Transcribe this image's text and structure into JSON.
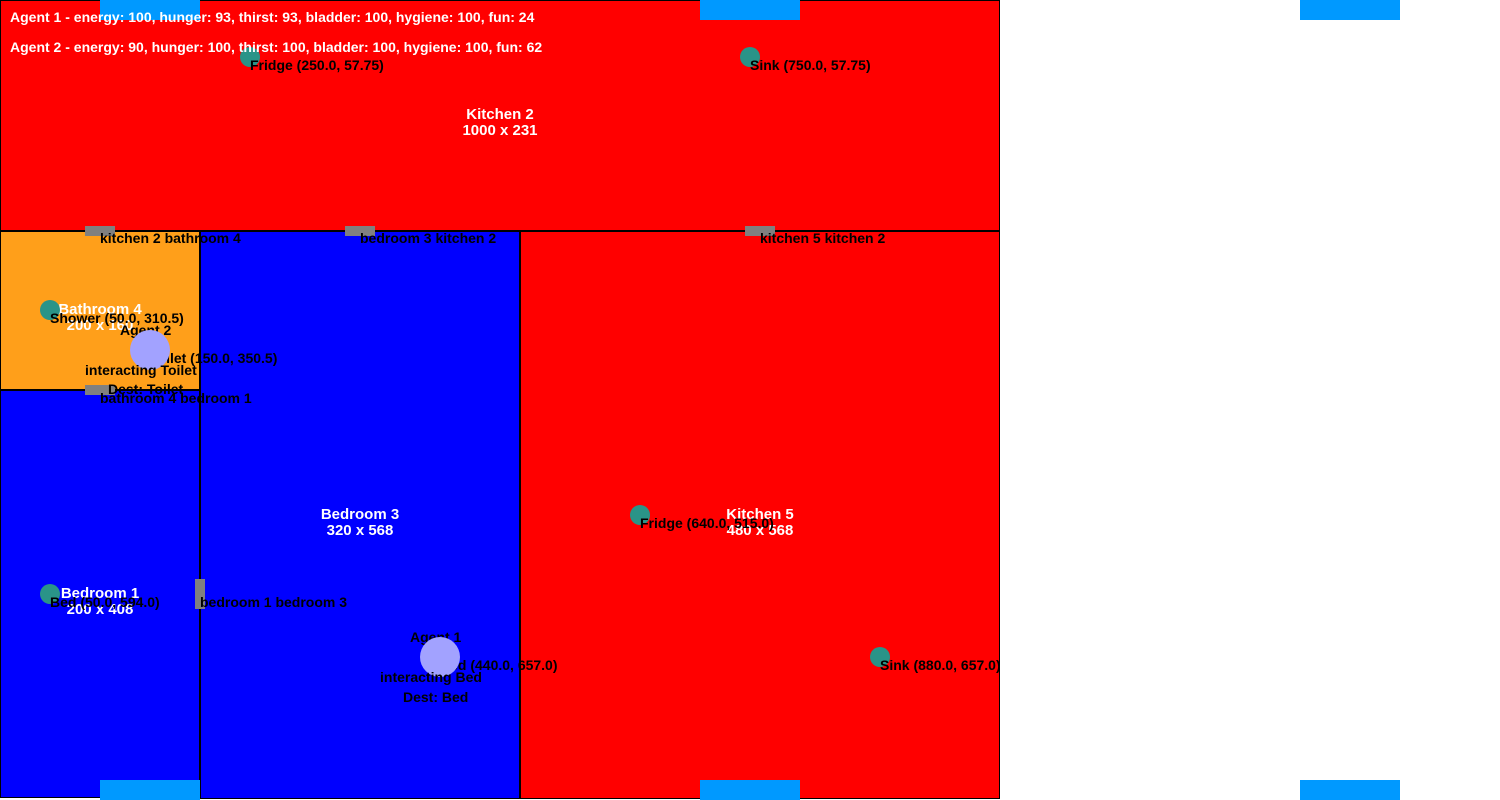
{
  "colors": {
    "kitchen": "#ff0000",
    "bedroom": "#0000ff",
    "bathroom": "#ff9f1a",
    "door": "#808080",
    "object": "#2a9488",
    "agent": "#a2a2ff",
    "window": "#0099ff"
  },
  "status": {
    "agent1": "Agent 1 - energy: 100, hunger: 93, thirst: 93, bladder: 100, hygiene: 100, fun: 24",
    "agent2": "Agent 2 - energy: 90, hunger: 100, thirst: 100, bladder: 100, hygiene: 100, fun: 62"
  },
  "rooms": {
    "kitchen2": {
      "name": "Kitchen 2",
      "size": "1000 x 231"
    },
    "bathroom4": {
      "name": "Bathroom 4",
      "size": "200 x 160"
    },
    "bedroom1": {
      "name": "Bedroom 1",
      "size": "200 x 408"
    },
    "bedroom3": {
      "name": "Bedroom 3",
      "size": "320 x 568"
    },
    "kitchen5": {
      "name": "Kitchen 5",
      "size": "480 x 568"
    }
  },
  "doors": {
    "k2_b4": "kitchen 2 bathroom 4",
    "b3_k2": "bedroom 3 kitchen 2",
    "k5_k2": "kitchen 5 kitchen 2",
    "b4_b1": "bathroom 4 bedroom 1",
    "b1_b3": "bedroom 1 bedroom 3"
  },
  "objects": {
    "fridge_k2": "Fridge (250.0, 57.75)",
    "sink_k2": "Sink (750.0, 57.75)",
    "shower": "Shower (50.0, 310.5)",
    "toilet": "Toilet (150.0, 350.5)",
    "bed_b1": "Bed (50.0, 594.0)",
    "bed_b3": "Bed (440.0, 657.0)",
    "fridge_k5": "Fridge (640.0, 515.0)",
    "sink_k5": "Sink (880.0, 657.0)"
  },
  "agents": {
    "agent1": {
      "name": "Agent 1",
      "activity": "interacting Bed",
      "dest": "Dest: Bed"
    },
    "agent2": {
      "name": "Agent 2",
      "activity": "interacting Toilet",
      "dest": "Dest: Toilet"
    }
  }
}
